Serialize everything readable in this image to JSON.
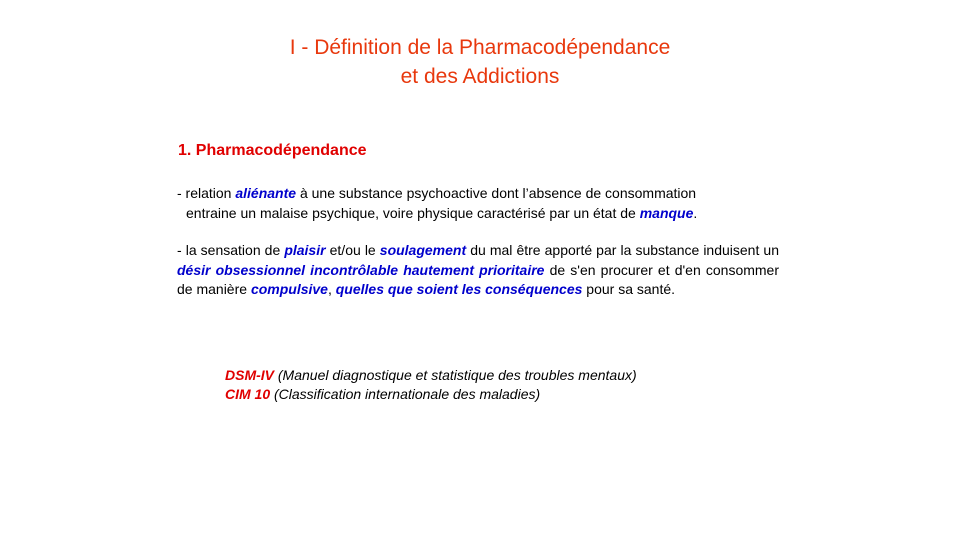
{
  "title": {
    "line1": "I - Définition de la Pharmacodépendance",
    "line2": "et des Addictions"
  },
  "section": {
    "heading": "1. Pharmacodépendance",
    "para1": {
      "t1": "- relation ",
      "e1": "aliénante",
      "t2": " à une substance psychoactive dont l’absence de consommation",
      "t3": "entraine un malaise psychique, voire physique caractérisé par un état de ",
      "e2": "manque",
      "t4": "."
    },
    "para2": {
      "t1": "- la sensation de ",
      "e1": "plaisir",
      "t2": " et/ou le ",
      "e2": "soulagement",
      "t3": " du mal être apporté par la substance induisent un ",
      "e3": "désir obsessionnel incontrôlable hautement prioritaire",
      "t4": " de s'en procurer et d'en consommer de manière ",
      "e4": "compulsive",
      "t5": ", ",
      "e5": "quelles que soient les conséquences",
      "t6": " pour sa santé."
    }
  },
  "references": [
    {
      "code": "DSM-IV",
      "desc": " (Manuel diagnostique et statistique des troubles mentaux)"
    },
    {
      "code": "CIM 10",
      "desc": " (Classification internationale des maladies)"
    }
  ],
  "colors": {
    "title": "#e8380d",
    "heading": "#e00000",
    "emphasis": "#0000cc"
  }
}
